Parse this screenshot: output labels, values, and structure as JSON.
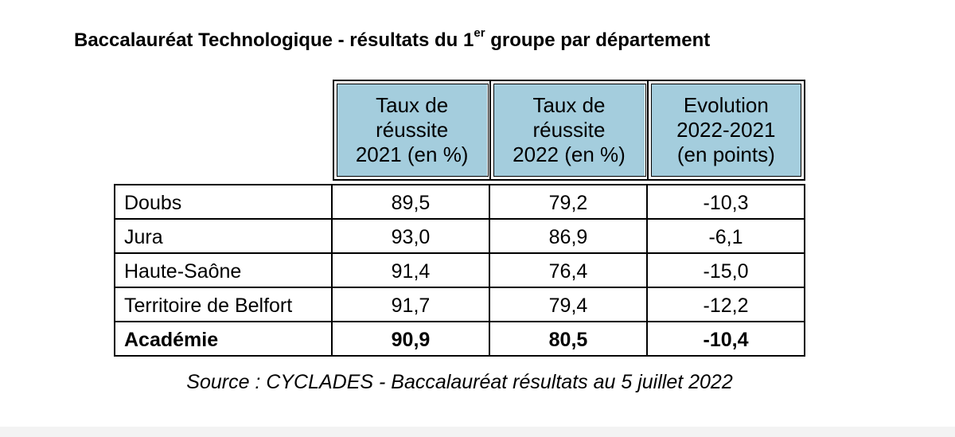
{
  "title": {
    "main": "Baccalauréat Technologique - résultats du 1",
    "superscript": "er",
    "rest": " groupe par département"
  },
  "table": {
    "headers": [
      [
        "Taux de",
        "réussite",
        "2021 (en %)"
      ],
      [
        "Taux de",
        "réussite",
        "2022 (en %)"
      ],
      [
        "Evolution",
        "2022-2021",
        "(en points)"
      ]
    ],
    "rows": [
      {
        "name": "Doubs",
        "v2021": "89,5",
        "v2022": "79,2",
        "evolution": "-10,3"
      },
      {
        "name": "Jura",
        "v2021": "93,0",
        "v2022": "86,9",
        "evolution": "-6,1"
      },
      {
        "name": "Haute-Saône",
        "v2021": "91,4",
        "v2022": "76,4",
        "evolution": "-15,0"
      },
      {
        "name": "Territoire de Belfort",
        "v2021": "91,7",
        "v2022": "79,4",
        "evolution": "-12,2"
      },
      {
        "name": "Académie",
        "v2021": "90,9",
        "v2022": "80,5",
        "evolution": "-10,4"
      }
    ]
  },
  "source": "Source : CYCLADES - Baccalauréat résultats au 5 juillet 2022",
  "colors": {
    "header_fill": "#a4cddd"
  }
}
